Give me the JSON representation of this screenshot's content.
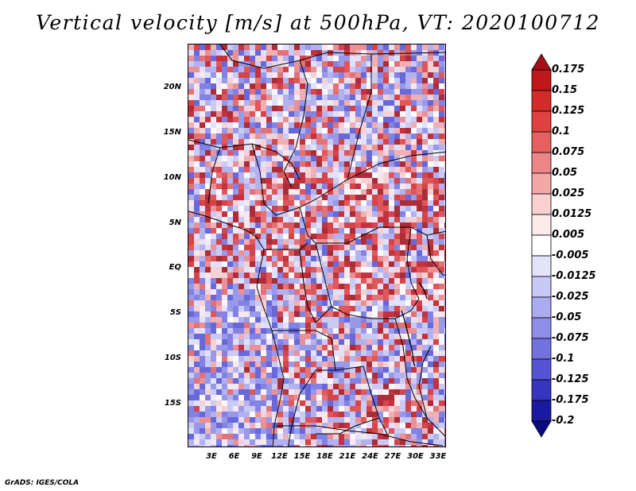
{
  "title": "Vertical velocity [m/s] at 500hPa, VT: 2020100712",
  "footer": "GrADS: IGES/COLA",
  "map": {
    "lat_ticks": [
      "20N",
      "15N",
      "10N",
      "5N",
      "EQ",
      "5S",
      "10S",
      "15S"
    ],
    "lon_ticks": [
      "3E",
      "6E",
      "9E",
      "12E",
      "15E",
      "18E",
      "21E",
      "24E",
      "27E",
      "30E",
      "33E"
    ]
  },
  "colorbar": {
    "labels": [
      "0.175",
      "0.15",
      "0.125",
      "0.1",
      "0.075",
      "0.05",
      "0.025",
      "0.0125",
      "0.005",
      "-0.005",
      "-0.0125",
      "-0.025",
      "-0.05",
      "-0.075",
      "-0.1",
      "-0.125",
      "-0.175",
      "-0.2"
    ],
    "colors": [
      "#a50f15",
      "#c0161c",
      "#d42a2a",
      "#e04040",
      "#e56060",
      "#ec8585",
      "#f3a8a8",
      "#f9d0d0",
      "#fdebeb",
      "#ffffff",
      "#e3e3fb",
      "#c8c8f5",
      "#ababef",
      "#8e8ee8",
      "#7373e0",
      "#5555d4",
      "#3535c0",
      "#1a1aa0",
      "#0b0b80"
    ]
  }
}
